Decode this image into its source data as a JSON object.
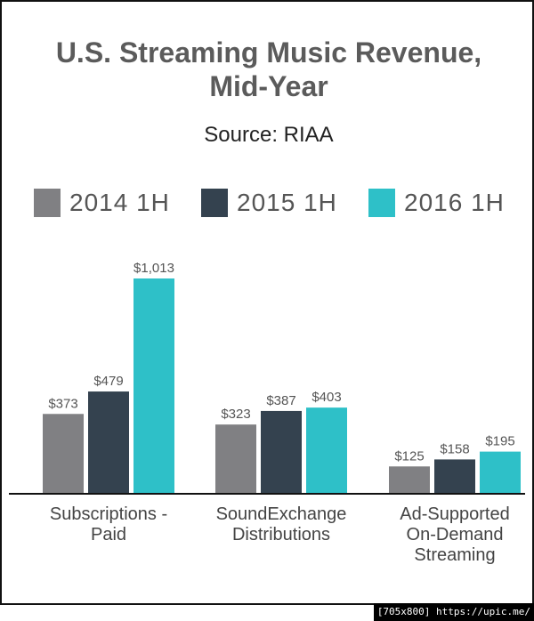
{
  "chart_data": {
    "type": "bar",
    "title": "U.S. Streaming Music Revenue, Mid-Year",
    "title_lines": [
      "U.S. Streaming Music Revenue,",
      "Mid-Year"
    ],
    "subtitle": "Source: RIAA",
    "categories": [
      "Subscriptions - Paid",
      "SoundExchange Distributions",
      "Ad-Supported On-Demand Streaming"
    ],
    "category_lines": [
      [
        "Subscriptions -",
        "Paid"
      ],
      [
        "SoundExchange",
        "Distributions"
      ],
      [
        "Ad-Supported",
        "On-Demand",
        "Streaming"
      ]
    ],
    "series": [
      {
        "name": "2014 1H",
        "color": "#808083",
        "values": [
          373,
          323,
          125
        ],
        "labels": [
          "$373",
          "$323",
          "$125"
        ]
      },
      {
        "name": "2015 1H",
        "color": "#34424f",
        "values": [
          479,
          387,
          158
        ],
        "labels": [
          "$479",
          "$387",
          "$158"
        ]
      },
      {
        "name": "2016 1H",
        "color": "#2ec0c8",
        "values": [
          1013,
          403,
          195
        ],
        "labels": [
          "$1,013",
          "$403",
          "$195"
        ]
      }
    ],
    "unit": "$ millions",
    "ylim": [
      0,
      1013
    ],
    "legend_position": "top",
    "grid": false
  },
  "footer": {
    "watermark": "[705x800] https://upic.me/"
  }
}
